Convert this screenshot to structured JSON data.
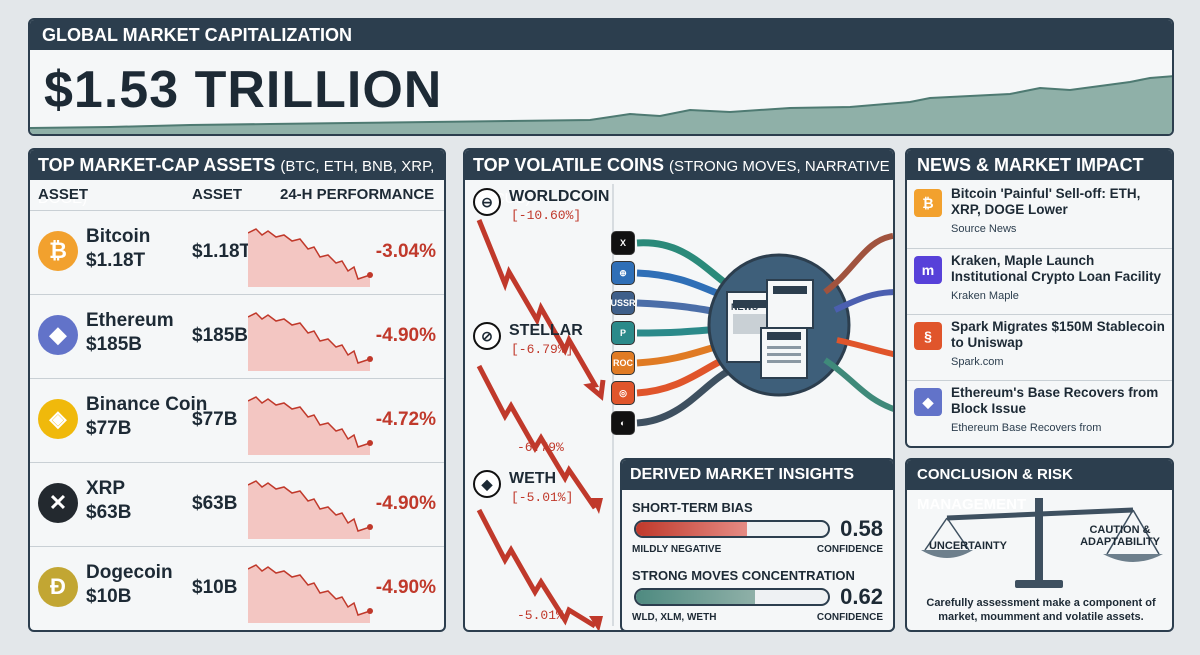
{
  "global": {
    "title": "GLOBAL MARKET CAPITALIZATION",
    "value": "$1.53 TRILLION"
  },
  "top_assets": {
    "title": "TOP MARKET-CAP ASSETS",
    "subtitle": "(BTC, ETH, BNB, XRP, DOGE)",
    "col_asset": "ASSET",
    "col_asset2": "ASSET",
    "col_perf": "24-H PERFORMANCE",
    "rows": [
      {
        "name": "Bitcoin",
        "cap_sub": "$1.18T",
        "cap": "$1.18T",
        "perf": "-3.04%",
        "icon": "bitcoin-icon",
        "color": "#f2a12e",
        "glyph": "₿"
      },
      {
        "name": "Ethereum",
        "cap_sub": "$185B",
        "cap": "$185B",
        "perf": "-4.90%",
        "icon": "ethereum-icon",
        "color": "#6273c9",
        "glyph": "◆"
      },
      {
        "name": "Binance Coin",
        "cap_sub": "$77B",
        "cap": "$77B",
        "perf": "-4.72%",
        "icon": "binance-icon",
        "color": "#f0b90b",
        "glyph": "◈"
      },
      {
        "name": "XRP",
        "cap_sub": "$63B",
        "cap": "$63B",
        "perf": "-4.90%",
        "icon": "xrp-icon",
        "color": "#23292f",
        "glyph": "✕"
      },
      {
        "name": "Dogecoin",
        "cap_sub": "$10B",
        "cap": "$10B",
        "perf": "-4.90%",
        "icon": "dogecoin-icon",
        "color": "#c2a633",
        "glyph": "Đ"
      }
    ]
  },
  "volatile": {
    "title": "TOP VOLATILE COINS",
    "subtitle": "(STRONG MOVES, NARRATIVE FOCUS)",
    "coins": [
      {
        "name": "WORLDCOIN",
        "change": "[-10.60%]",
        "end": "",
        "glyph": "⊖"
      },
      {
        "name": "STELLAR",
        "change": "[-6.79%]",
        "end": "-6.79%",
        "glyph": "⊘"
      },
      {
        "name": "WETH",
        "change": "[-5.01%]",
        "end": "-5.01%",
        "glyph": "◆"
      }
    ],
    "sources": [
      {
        "label": "X",
        "color": "#111111"
      },
      {
        "label": "⊕",
        "color": "#2f6fb7"
      },
      {
        "label": "USSR",
        "color": "#3e5f8a"
      },
      {
        "label": "P",
        "color": "#2b8a8a"
      },
      {
        "label": "ROC",
        "color": "#e07b24"
      },
      {
        "label": "◎",
        "color": "#e0552b"
      },
      {
        "label": "◐",
        "color": "#111111"
      }
    ],
    "news_label": "NEWS"
  },
  "insights": {
    "title": "DERIVED MARKET INSIGHTS",
    "bias_label": "SHORT-TERM BIAS",
    "bias_value": "0.58",
    "bias_desc": "MILDLY NEGATIVE",
    "bias_conf": "CONFIDENCE",
    "bias_fill": 0.58,
    "conc_label": "STRONG MOVES CONCENTRATION",
    "conc_value": "0.62",
    "conc_desc": "WLD, XLM, WETH",
    "conc_conf": "CONFIDENCE",
    "conc_fill": 0.62
  },
  "news": {
    "title": "NEWS & MARKET IMPACT",
    "items": [
      {
        "title": "Bitcoin 'Painful' Sell-off: ETH, XRP, DOGE Lower",
        "source": "Source News",
        "color": "#f2a12e",
        "glyph": "₿",
        "icon": "bitcoin-icon"
      },
      {
        "title": "Kraken, Maple Launch Institutional Crypto Loan Facility",
        "source": "Kraken Maple",
        "color": "#5741d9",
        "glyph": "m",
        "icon": "kraken-icon"
      },
      {
        "title": "Spark Migrates $150M Stablecoin to Uniswap",
        "source": "Spark.com",
        "color": "#e0552b",
        "glyph": "§",
        "icon": "spark-icon"
      },
      {
        "title": "Ethereum's Base Recovers from Block Issue",
        "source": "Ethereum Base Recovers from",
        "color": "#6273c9",
        "glyph": "◆",
        "icon": "ethereum-icon"
      }
    ]
  },
  "conclusion": {
    "title": "CONCLUSION & RISK MANAGEMENT",
    "left": "UNCERTAINTY",
    "right": "CAUTION & ADAPTABILITY",
    "text": "Carefully assessment make a component of market, moumment and volatile assets."
  }
}
